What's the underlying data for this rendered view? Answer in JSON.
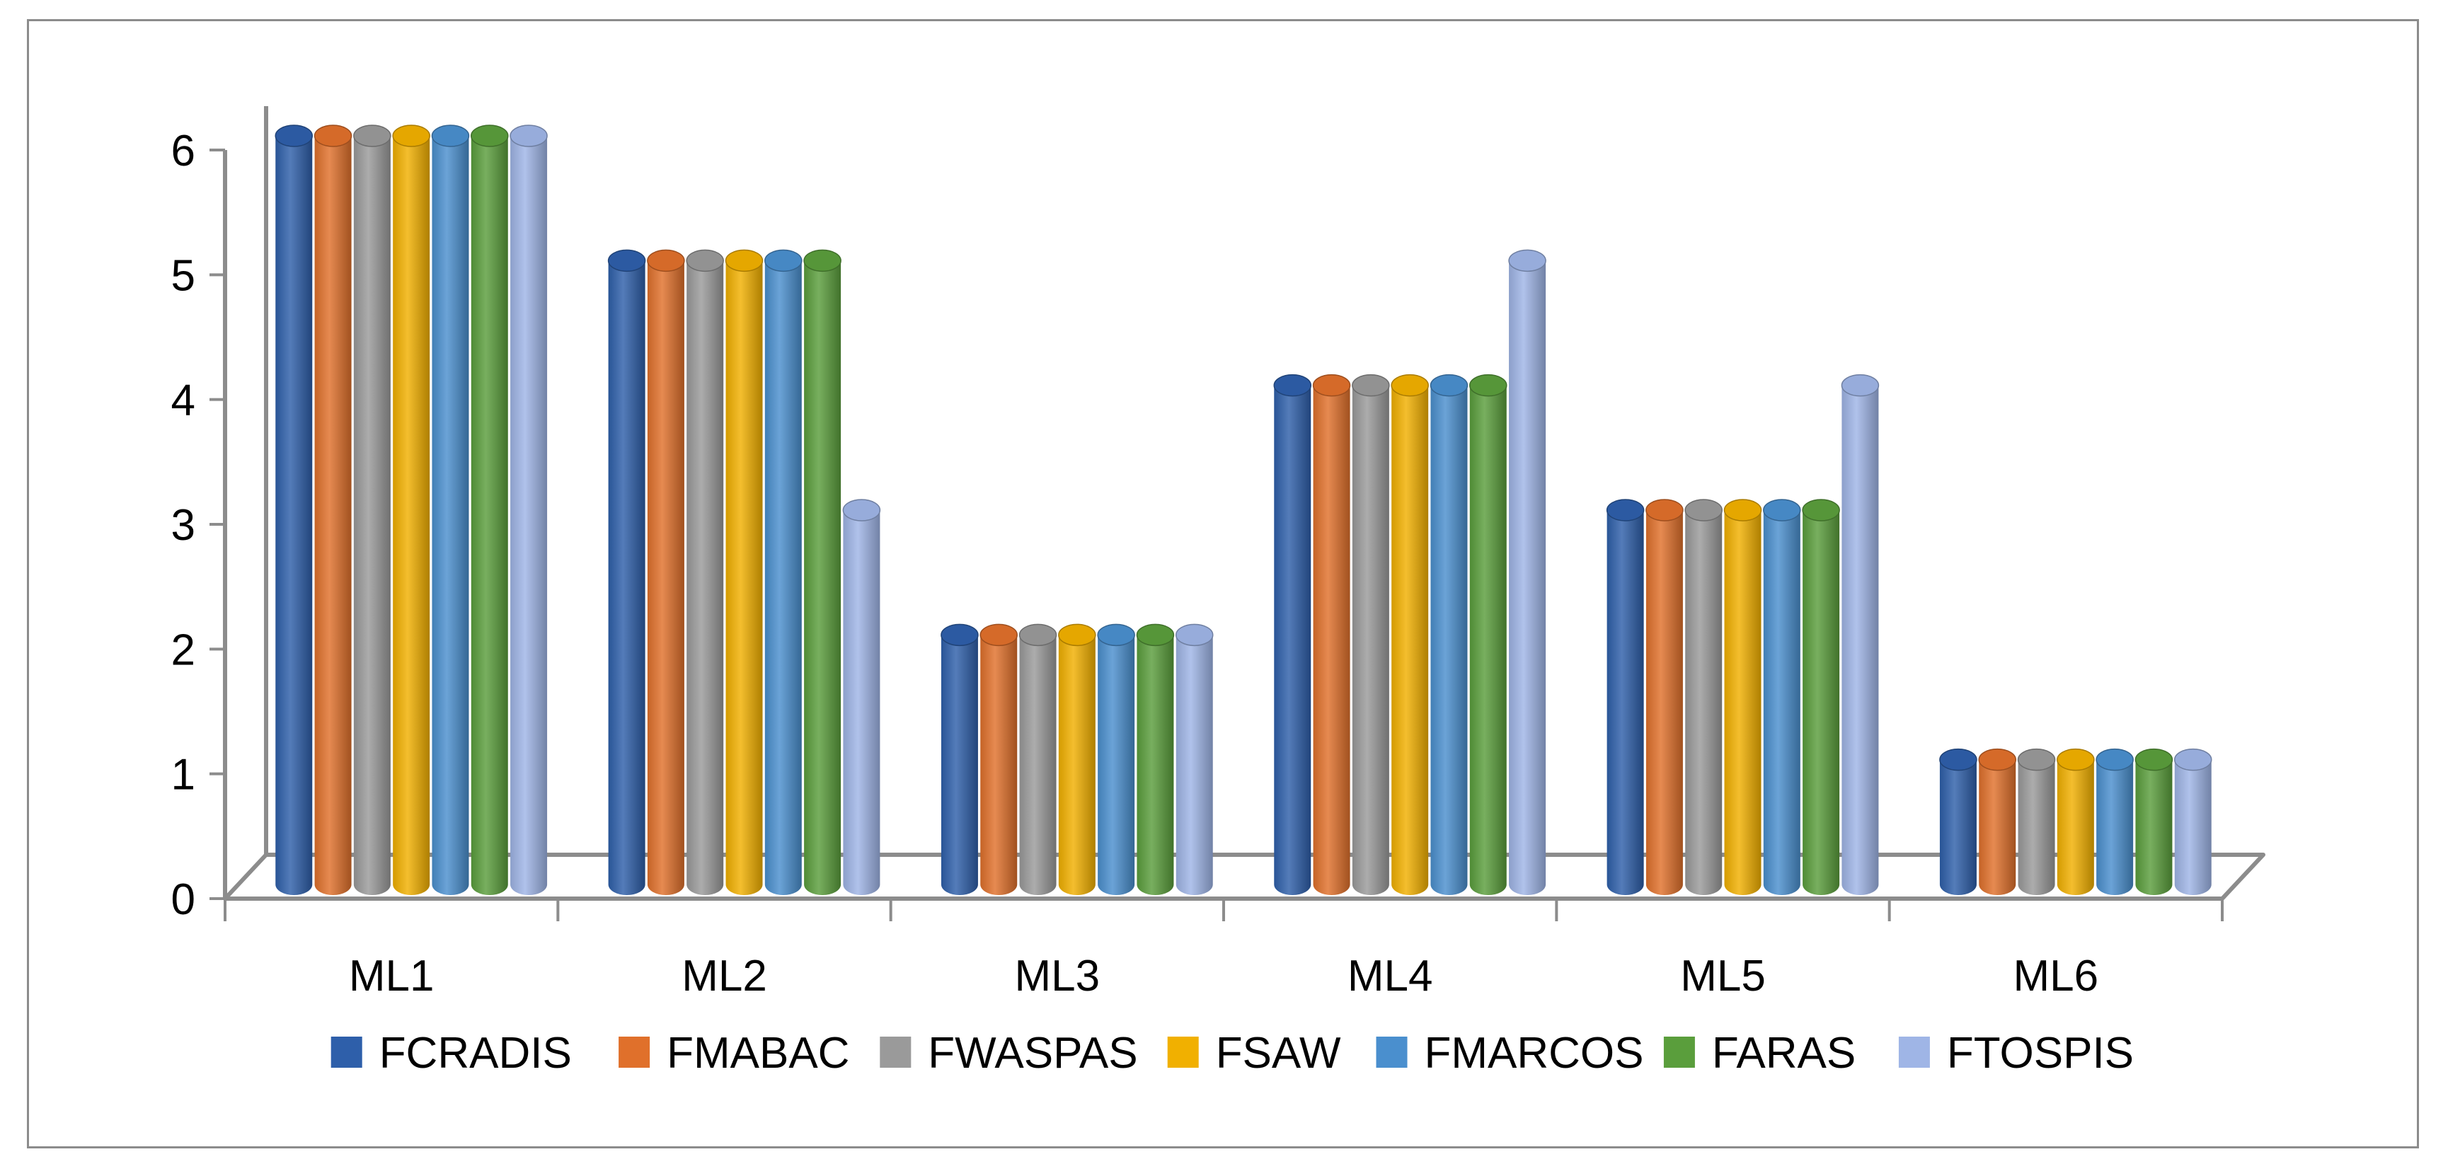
{
  "chart_data": {
    "type": "bar",
    "title": "",
    "xlabel": "",
    "ylabel": "",
    "ylim": [
      0,
      6
    ],
    "yticks": [
      "0",
      "1",
      "2",
      "3",
      "4",
      "5",
      "6"
    ],
    "grid": false,
    "legend_position": "bottom",
    "categories": [
      "ML1",
      "ML2",
      "ML3",
      "ML4",
      "ML5",
      "ML6"
    ],
    "series": [
      {
        "name": "FCRADIS",
        "color": "#2e5faa",
        "values": [
          6,
          5,
          2,
          4,
          3,
          1
        ]
      },
      {
        "name": "FMABAC",
        "color": "#e0702b",
        "values": [
          6,
          5,
          2,
          4,
          3,
          1
        ]
      },
      {
        "name": "FWASPAS",
        "color": "#9a9a9a",
        "values": [
          6,
          5,
          2,
          4,
          3,
          1
        ]
      },
      {
        "name": "FSAW",
        "color": "#f1b000",
        "values": [
          6,
          5,
          2,
          4,
          3,
          1
        ]
      },
      {
        "name": "FMARCOS",
        "color": "#4a8fce",
        "values": [
          6,
          5,
          2,
          4,
          3,
          1
        ]
      },
      {
        "name": "FARAS",
        "color": "#5a9e3c",
        "values": [
          6,
          5,
          2,
          4,
          3,
          1
        ]
      },
      {
        "name": "FTOSPIS",
        "color": "#9fb5e6",
        "values": [
          6,
          3,
          2,
          5,
          4,
          1
        ]
      }
    ]
  }
}
